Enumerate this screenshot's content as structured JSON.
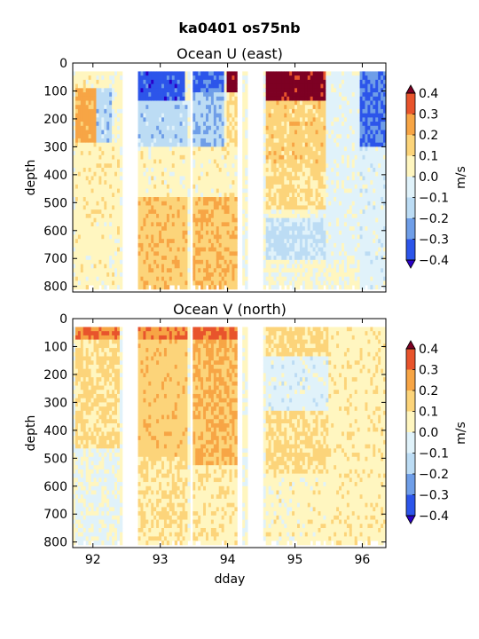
{
  "figure": {
    "suptitle": "ka0401 os75nb"
  },
  "palette": {
    "levels": [
      -0.4,
      -0.3,
      -0.2,
      -0.1,
      0.0,
      0.1,
      0.2,
      0.3,
      0.4
    ],
    "colors": [
      "#3a13c8",
      "#2c55ea",
      "#6f9ee8",
      "#bcdcf4",
      "#e0f2fa",
      "#fff6c0",
      "#fcd47a",
      "#f7a545",
      "#e8542c",
      "#a60f1e"
    ],
    "over": "#7d0023",
    "under": "#2a00c8"
  },
  "chart_data": [
    {
      "type": "heatmap",
      "title": "Ocean U (east)",
      "xlabel": "",
      "ylabel": "depth",
      "xlim": [
        91.7,
        96.35
      ],
      "ylim": [
        820,
        0
      ],
      "x_ticks": [
        92,
        93,
        94,
        95,
        96
      ],
      "x_tick_labels": [
        "",
        "",
        "",
        "",
        ""
      ],
      "y_ticks": [
        0,
        100,
        200,
        300,
        400,
        500,
        600,
        700,
        800
      ],
      "y_tick_labels": [
        "0",
        "100",
        "200",
        "300",
        "400",
        "500",
        "600",
        "700",
        "800"
      ],
      "colorbar": {
        "label": "m/s",
        "ticks": [
          "0.4",
          "0.3",
          "0.2",
          "0.1",
          "0.0",
          "−0.1",
          "−0.2",
          "−0.3",
          "−0.4"
        ],
        "extend": "both"
      },
      "data_gaps_dday": [
        [
          92.42,
          92.65
        ],
        [
          93.44,
          93.47
        ],
        [
          94.16,
          94.2
        ],
        [
          94.28,
          94.52
        ]
      ],
      "depth_coverage_m": [
        30,
        810
      ],
      "features": [
        {
          "dday": [
            91.72,
            92.3
          ],
          "depth": [
            30,
            90
          ],
          "value": 0.05
        },
        {
          "dday": [
            91.72,
            92.15
          ],
          "depth": [
            90,
            280
          ],
          "value": 0.24
        },
        {
          "dday": [
            92.05,
            92.3
          ],
          "depth": [
            90,
            290
          ],
          "value": -0.15
        },
        {
          "dday": [
            91.72,
            92.4
          ],
          "depth": [
            290,
            560
          ],
          "value": 0.06
        },
        {
          "dday": [
            91.72,
            92.4
          ],
          "depth": [
            560,
            810
          ],
          "value": 0.05
        },
        {
          "dday": [
            92.65,
            93.35
          ],
          "depth": [
            30,
            140
          ],
          "value": -0.35
        },
        {
          "dday": [
            92.65,
            93.4
          ],
          "depth": [
            140,
            300
          ],
          "value": -0.15
        },
        {
          "dday": [
            92.65,
            93.4
          ],
          "depth": [
            300,
            480
          ],
          "value": 0.05
        },
        {
          "dday": [
            92.65,
            93.4
          ],
          "depth": [
            480,
            810
          ],
          "value": 0.17
        },
        {
          "dday": [
            93.48,
            93.95
          ],
          "depth": [
            30,
            110
          ],
          "value": -0.32
        },
        {
          "dday": [
            93.48,
            93.95
          ],
          "depth": [
            110,
            300
          ],
          "value": -0.18
        },
        {
          "dday": [
            93.48,
            94.15
          ],
          "depth": [
            300,
            480
          ],
          "value": 0.05
        },
        {
          "dday": [
            93.48,
            94.15
          ],
          "depth": [
            480,
            810
          ],
          "value": 0.18
        },
        {
          "dday": [
            94.0,
            94.16
          ],
          "depth": [
            30,
            110
          ],
          "value": 0.45
        },
        {
          "dday": [
            94.0,
            94.16
          ],
          "depth": [
            110,
            300
          ],
          "value": 0.1
        },
        {
          "dday": [
            94.55,
            95.6
          ],
          "depth": [
            30,
            140
          ],
          "value": 0.45
        },
        {
          "dday": [
            94.55,
            95.6
          ],
          "depth": [
            140,
            360
          ],
          "value": 0.15
        },
        {
          "dday": [
            94.55,
            95.5
          ],
          "depth": [
            360,
            520
          ],
          "value": 0.12
        },
        {
          "dday": [
            94.55,
            95.5
          ],
          "depth": [
            560,
            700
          ],
          "value": -0.12
        },
        {
          "dday": [
            95.45,
            95.95
          ],
          "depth": [
            30,
            700
          ],
          "value": -0.04
        },
        {
          "dday": [
            95.95,
            96.35
          ],
          "depth": [
            30,
            300
          ],
          "value": -0.3
        },
        {
          "dday": [
            95.95,
            96.35
          ],
          "depth": [
            300,
            810
          ],
          "value": -0.05
        }
      ]
    },
    {
      "type": "heatmap",
      "title": "Ocean V (north)",
      "xlabel": "dday",
      "ylabel": "depth",
      "xlim": [
        91.7,
        96.35
      ],
      "ylim": [
        820,
        0
      ],
      "x_ticks": [
        92,
        93,
        94,
        95,
        96
      ],
      "x_tick_labels": [
        "92",
        "93",
        "94",
        "95",
        "96"
      ],
      "y_ticks": [
        0,
        100,
        200,
        300,
        400,
        500,
        600,
        700,
        800
      ],
      "y_tick_labels": [
        "0",
        "100",
        "200",
        "300",
        "400",
        "500",
        "600",
        "700",
        "800"
      ],
      "colorbar": {
        "label": "m/s",
        "ticks": [
          "0.4",
          "0.3",
          "0.2",
          "0.1",
          "0.0",
          "−0.1",
          "−0.2",
          "−0.3",
          "−0.4"
        ],
        "extend": "both"
      },
      "data_gaps_dday": [
        [
          92.42,
          92.65
        ],
        [
          93.44,
          93.47
        ],
        [
          94.16,
          94.2
        ],
        [
          94.28,
          94.52
        ]
      ],
      "depth_coverage_m": [
        30,
        810
      ],
      "features": [
        {
          "dday": [
            91.72,
            92.4
          ],
          "depth": [
            30,
            80
          ],
          "value": 0.3
        },
        {
          "dday": [
            91.72,
            92.4
          ],
          "depth": [
            80,
            460
          ],
          "value": 0.12
        },
        {
          "dday": [
            91.72,
            92.4
          ],
          "depth": [
            460,
            810
          ],
          "value": -0.02
        },
        {
          "dday": [
            92.65,
            93.4
          ],
          "depth": [
            30,
            80
          ],
          "value": 0.3
        },
        {
          "dday": [
            92.65,
            93.4
          ],
          "depth": [
            80,
            500
          ],
          "value": 0.16
        },
        {
          "dday": [
            92.65,
            93.4
          ],
          "depth": [
            500,
            810
          ],
          "value": 0.1
        },
        {
          "dday": [
            93.48,
            94.15
          ],
          "depth": [
            30,
            80
          ],
          "value": 0.33
        },
        {
          "dday": [
            93.48,
            94.15
          ],
          "depth": [
            80,
            520
          ],
          "value": 0.2
        },
        {
          "dday": [
            93.48,
            94.15
          ],
          "depth": [
            520,
            810
          ],
          "value": 0.07
        },
        {
          "dday": [
            94.55,
            95.5
          ],
          "depth": [
            30,
            130
          ],
          "value": 0.12
        },
        {
          "dday": [
            94.55,
            95.5
          ],
          "depth": [
            130,
            330
          ],
          "value": -0.05
        },
        {
          "dday": [
            94.55,
            95.5
          ],
          "depth": [
            330,
            560
          ],
          "value": 0.12
        },
        {
          "dday": [
            94.55,
            95.5
          ],
          "depth": [
            560,
            810
          ],
          "value": 0.05
        },
        {
          "dday": [
            95.5,
            96.35
          ],
          "depth": [
            30,
            810
          ],
          "value": 0.06
        }
      ]
    }
  ]
}
